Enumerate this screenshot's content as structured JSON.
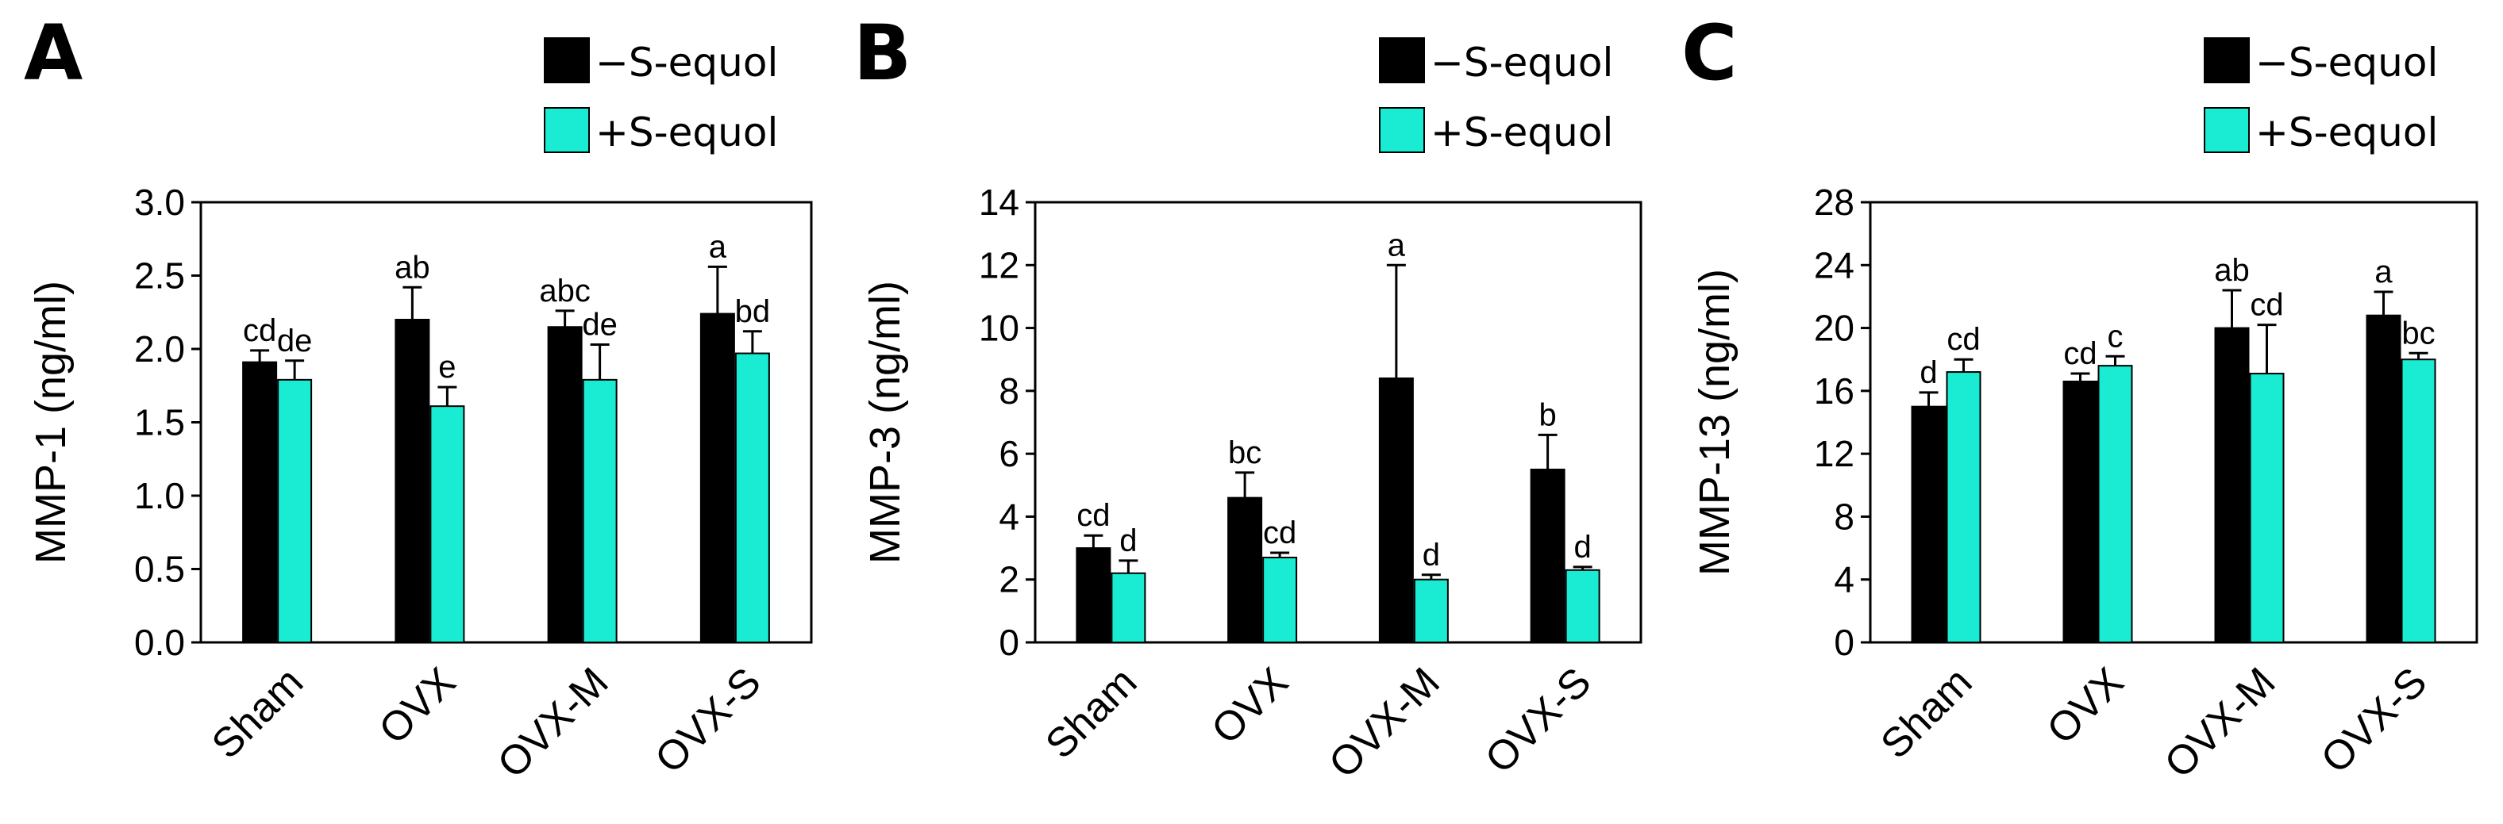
{
  "colors": {
    "minus": "#000000",
    "plus": "#19ecd2",
    "axis": "#000000"
  },
  "legend": {
    "minus_label": "−S-equol",
    "plus_label": "+S-equol"
  },
  "chart_data": [
    {
      "type": "bar",
      "panel": "A",
      "title": "",
      "ylabel": "MMP-1 (ng/ml)",
      "xlabel": "",
      "categories": [
        "Sham",
        "OVX",
        "OVX-M",
        "OVX-S"
      ],
      "ylim": [
        0,
        3.0
      ],
      "ytick_labels": [
        "0.0",
        "0.5",
        "1.0",
        "1.5",
        "2.0",
        "2.5",
        "3.0"
      ],
      "series": [
        {
          "name": "−S-equol",
          "values": [
            1.91,
            2.2,
            2.15,
            2.24
          ],
          "errors": [
            0.08,
            0.22,
            0.11,
            0.32
          ],
          "labels": [
            "cd",
            "ab",
            "abc",
            "a"
          ]
        },
        {
          "name": "+S-equol",
          "values": [
            1.79,
            1.61,
            1.79,
            1.97
          ],
          "errors": [
            0.13,
            0.13,
            0.24,
            0.15
          ],
          "labels": [
            "de",
            "e",
            "de",
            "bd"
          ]
        }
      ]
    },
    {
      "type": "bar",
      "panel": "B",
      "title": "",
      "ylabel": "MMP-3 (ng/ml)",
      "xlabel": "",
      "categories": [
        "Sham",
        "OVX",
        "OVX-M",
        "OVX-S"
      ],
      "ylim": [
        0,
        14
      ],
      "ytick_labels": [
        "0",
        "2",
        "4",
        "6",
        "8",
        "10",
        "12",
        "14"
      ],
      "series": [
        {
          "name": "−S-equol",
          "values": [
            3.0,
            4.6,
            8.4,
            5.5
          ],
          "errors": [
            0.4,
            0.8,
            3.6,
            1.1
          ],
          "labels": [
            "cd",
            "bc",
            "a",
            "b"
          ]
        },
        {
          "name": "+S-equol",
          "values": [
            2.2,
            2.7,
            2.0,
            2.3
          ],
          "errors": [
            0.4,
            0.15,
            0.15,
            0.1
          ],
          "labels": [
            "d",
            "cd",
            "d",
            "d"
          ]
        }
      ]
    },
    {
      "type": "bar",
      "panel": "C",
      "title": "",
      "ylabel": "MMP-13 (ng/ml)",
      "xlabel": "",
      "categories": [
        "Sham",
        "OVX",
        "OVX-M",
        "OVX-S"
      ],
      "ylim": [
        0,
        28
      ],
      "ytick_labels": [
        "0",
        "4",
        "8",
        "12",
        "16",
        "20",
        "24",
        "28"
      ],
      "series": [
        {
          "name": "−S-equol",
          "values": [
            15.0,
            16.6,
            20.0,
            20.8
          ],
          "errors": [
            0.9,
            0.5,
            2.4,
            1.5
          ],
          "labels": [
            "d",
            "cd",
            "ab",
            "a"
          ]
        },
        {
          "name": "+S-equol",
          "values": [
            17.2,
            17.6,
            17.1,
            18.0
          ],
          "errors": [
            0.8,
            0.6,
            3.1,
            0.4
          ],
          "labels": [
            "cd",
            "c",
            "cd",
            "bc"
          ]
        }
      ]
    }
  ]
}
